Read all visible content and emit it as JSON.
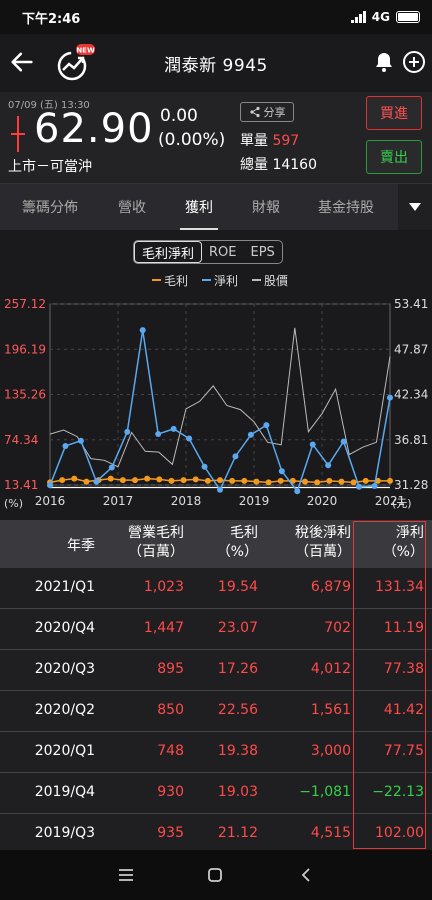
{
  "status_bar": {
    "time": "下午2:46",
    "network": "4G"
  },
  "header": {
    "title": "潤泰新 9945",
    "news_badge": "NEW"
  },
  "quote": {
    "date": "07/09 (五) 13:30",
    "price": "62.90",
    "change": "0.00",
    "change_pct": "(0.00%)",
    "market": "上市－可當沖",
    "share_label": "分享",
    "unit_vol_label": "單量",
    "unit_vol": "597",
    "total_vol_label": "總量",
    "total_vol": "14160",
    "buy_label": "買進",
    "sell_label": "賣出"
  },
  "tabs": [
    {
      "label": "籌碼分佈",
      "active": false
    },
    {
      "label": "營收",
      "active": false
    },
    {
      "label": "獲利",
      "active": true
    },
    {
      "label": "財報",
      "active": false
    },
    {
      "label": "基金持股",
      "active": false
    }
  ],
  "segments": [
    "毛利淨利",
    "ROE",
    "EPS"
  ],
  "chart_data": {
    "type": "line",
    "legend": [
      "毛利",
      "淨利",
      "股價"
    ],
    "legend_placement": "top",
    "series_colors": {
      "毛利": "#f39a1e",
      "淨利": "#5aa9f0",
      "股價": "#bbbbbb"
    },
    "left_axis_ticks": [
      "257.12",
      "196.19",
      "135.26",
      "74.34",
      "13.41"
    ],
    "left_axis_ylim": [
      13.41,
      257.12
    ],
    "left_axis_unit": "(%)",
    "right_axis_ticks": [
      "53.41",
      "47.87",
      "42.34",
      "36.81",
      "31.28"
    ],
    "right_axis_ylim": [
      31.28,
      53.41
    ],
    "right_axis_unit": "(元)",
    "x_ticks": [
      "2016",
      "2017",
      "2018",
      "2019",
      "2020",
      "2021"
    ],
    "reference_line": 10,
    "series": [
      {
        "name": "毛利",
        "values": [
          17,
          20,
          22,
          18,
          20,
          22,
          20,
          20,
          22,
          21,
          19,
          20,
          21,
          19,
          20,
          19,
          19,
          18,
          17,
          19,
          19,
          18,
          17,
          19,
          18,
          17,
          19,
          19,
          19
        ]
      },
      {
        "name": "淨利",
        "values": [
          13,
          66,
          73,
          18,
          37,
          85,
          222,
          82,
          89,
          76,
          38,
          7,
          52,
          81,
          94,
          32,
          5,
          68,
          40,
          72,
          11,
          12,
          131
        ]
      },
      {
        "name": "股價",
        "values": [
          37.5,
          38.0,
          37.2,
          34.5,
          34.3,
          33.5,
          37.7,
          35.4,
          35.3,
          33.8,
          40.6,
          41.5,
          43.4,
          41.0,
          40.5,
          39.0,
          36.5,
          36.2,
          50.5,
          37.8,
          40.0,
          43.0,
          35.0,
          35.9,
          36.5,
          47.0
        ]
      }
    ]
  },
  "table": {
    "headers": [
      {
        "l1": "年季",
        "l2": ""
      },
      {
        "l1": "營業毛利",
        "l2": "（百萬）"
      },
      {
        "l1": "毛利",
        "l2": "（%）"
      },
      {
        "l1": "稅後淨利",
        "l2": "（百萬）"
      },
      {
        "l1": "淨利",
        "l2": "（%）"
      }
    ],
    "rows": [
      [
        "2021/Q1",
        "1,023",
        "19.54",
        "6,879",
        "131.34"
      ],
      [
        "2020/Q4",
        "1,447",
        "23.07",
        "702",
        "11.19"
      ],
      [
        "2020/Q3",
        "895",
        "17.26",
        "4,012",
        "77.38"
      ],
      [
        "2020/Q2",
        "850",
        "22.56",
        "1,561",
        "41.42"
      ],
      [
        "2020/Q1",
        "748",
        "19.38",
        "3,000",
        "77.75"
      ],
      [
        "2019/Q4",
        "930",
        "19.03",
        "−1,081",
        "−22.13"
      ],
      [
        "2019/Q3",
        "935",
        "21.12",
        "4,515",
        "102.00"
      ]
    ],
    "negative_color": "#35d04b",
    "positive_color": "#ff4a4a"
  }
}
